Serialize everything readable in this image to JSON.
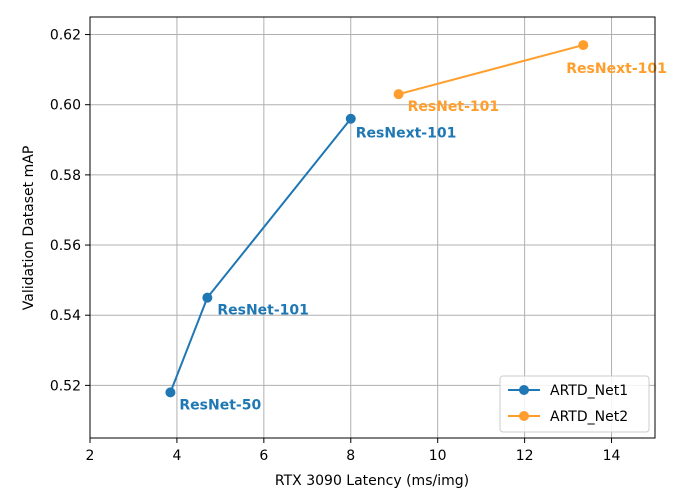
{
  "chart_data": {
    "type": "line",
    "xlabel": "RTX 3090 Latency (ms/img)",
    "ylabel": "Validation Dataset mAP",
    "xlim": [
      2,
      15
    ],
    "ylim": [
      0.505,
      0.625
    ],
    "xticks": [
      2,
      4,
      6,
      8,
      10,
      12,
      14
    ],
    "yticks": [
      0.52,
      0.54,
      0.56,
      0.58,
      0.6,
      0.62
    ],
    "ytick_labels": [
      "0.52",
      "0.54",
      "0.56",
      "0.58",
      "0.60",
      "0.62"
    ],
    "grid": true,
    "legend_position": "bottom-right",
    "series": [
      {
        "name": "ARTD_Net1",
        "color": "#1f77b4",
        "points": [
          {
            "x": 3.85,
            "y": 0.518,
            "label": "ResNet-50"
          },
          {
            "x": 4.7,
            "y": 0.545,
            "label": "ResNet-101"
          },
          {
            "x": 8.0,
            "y": 0.596,
            "label": "ResNext-101"
          }
        ]
      },
      {
        "name": "ARTD_Net2",
        "color": "#ff9e2c",
        "points": [
          {
            "x": 9.1,
            "y": 0.603,
            "label": "ResNet-101"
          },
          {
            "x": 13.35,
            "y": 0.617,
            "label": "ResNext-101"
          }
        ]
      }
    ]
  }
}
